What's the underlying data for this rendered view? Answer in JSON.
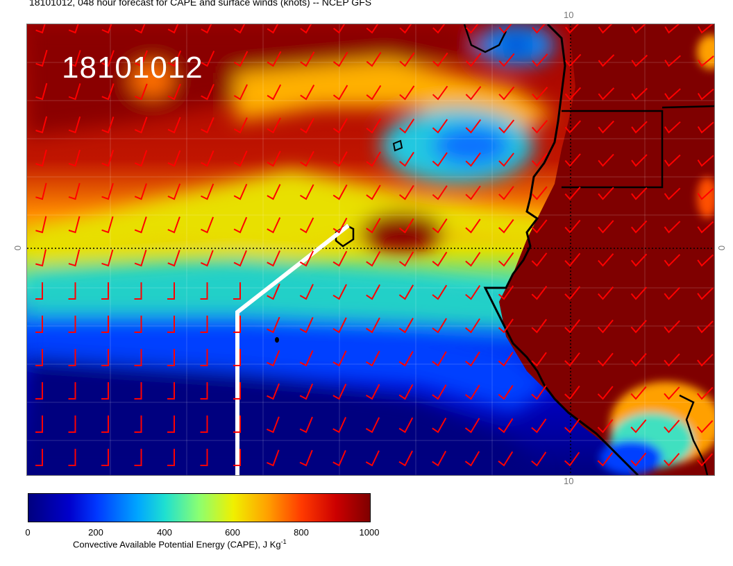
{
  "header": {
    "title": "18101012, 048 hour forecast for CAPE and surface winds (knots) -- NCEP GFS",
    "date_stamp": "18101012"
  },
  "axes": {
    "lat_label_left": "0",
    "lat_label_right": "0",
    "lon_label_top": "10",
    "lon_label_bottom": "10"
  },
  "colorbar": {
    "ticks": [
      "0",
      "200",
      "400",
      "600",
      "800",
      "1000"
    ],
    "label": "Convective Available Potential Energy (CAPE), J Kg",
    "label_superscript": "-1",
    "colors": [
      "#00007f",
      "#0000cc",
      "#0038ff",
      "#00a6ff",
      "#1fe0d0",
      "#8cff70",
      "#f0f000",
      "#ffa000",
      "#ff3a00",
      "#cc0000",
      "#7f0000"
    ]
  },
  "map": {
    "wind_barb_color": "#ff0000",
    "track_color": "#ffffff",
    "coastline_color": "#000000"
  }
}
